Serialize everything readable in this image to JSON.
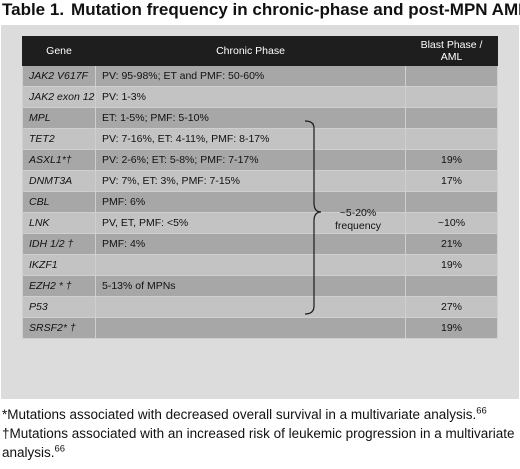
{
  "title": {
    "label": "Table 1.",
    "text": "Mutation frequency in chronic-phase and post-MPN AML"
  },
  "table": {
    "headers": [
      "Gene",
      "Chronic Phase",
      "Blast Phase / AML"
    ],
    "rows": [
      {
        "gene": "JAK2 V617F",
        "chronic": "PV: 95-98%; ET and PMF: 50-60%",
        "blast": ""
      },
      {
        "gene": "JAK2 exon 12",
        "chronic": "PV: 1-3%",
        "blast": ""
      },
      {
        "gene": "MPL",
        "chronic": "ET: 1-5%; PMF: 5-10%",
        "blast": ""
      },
      {
        "gene": "TET2",
        "chronic": "PV: 7-16%, ET: 4-11%, PMF: 8-17%",
        "blast": ""
      },
      {
        "gene": "ASXL1*†",
        "chronic": "PV: 2-6%; ET: 5-8%; PMF: 7-17%",
        "blast": "19%"
      },
      {
        "gene": "DNMT3A",
        "chronic": "PV: 7%, ET: 3%, PMF: 7-15%",
        "blast": "17%"
      },
      {
        "gene": "CBL",
        "chronic": "PMF: 6%",
        "blast": ""
      },
      {
        "gene": "LNK",
        "chronic": "PV, ET, PMF: <5%",
        "blast": "~10%"
      },
      {
        "gene": "IDH 1/2 †",
        "chronic": "PMF: 4%",
        "blast": "21%"
      },
      {
        "gene": "IKZF1",
        "chronic": "",
        "blast": "19%"
      },
      {
        "gene": "EZH2 * †",
        "chronic": "5-13% of MPNs",
        "blast": ""
      },
      {
        "gene": "P53",
        "chronic": "",
        "blast": "27%"
      },
      {
        "gene": "SRSF2* †",
        "chronic": "",
        "blast": "19%"
      }
    ]
  },
  "brace_label": "~5-20% frequency",
  "footnotes": [
    {
      "text": "*Mutations associated with decreased overall survival in a multivariate analysis.",
      "ref": "66"
    },
    {
      "text": "†Mutations associated with an increased risk of leukemic progression in a multivariate analysis.",
      "ref": "66"
    }
  ]
}
